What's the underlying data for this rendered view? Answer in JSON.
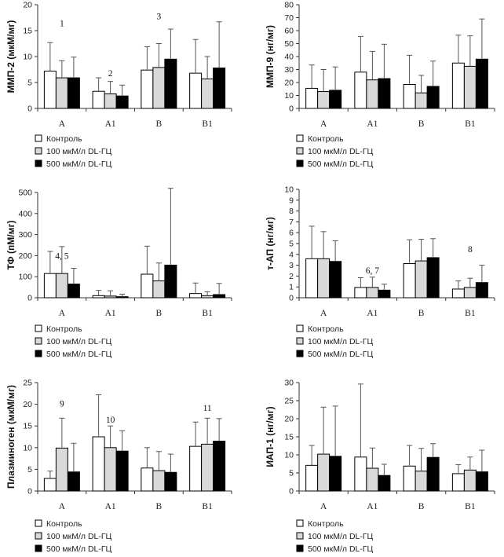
{
  "legend": {
    "entries": [
      "Контроль",
      "100 мкМ/л DL-ГЦ",
      "500 мкМ/л DL-ГЦ"
    ],
    "colors": [
      "#ffffff",
      "#d9d9d9",
      "#000000"
    ]
  },
  "chart_data": [
    {
      "type": "bar",
      "ylabel": "ММП-2 (мкМ/мг)",
      "ylim": [
        0,
        20
      ],
      "yticks": [
        0,
        5,
        10,
        15,
        20
      ],
      "categories": [
        "A",
        "A1",
        "B",
        "B1"
      ],
      "series": [
        {
          "name": "Контроль",
          "values": [
            7.2,
            3.3,
            7.4,
            6.8
          ],
          "errors": [
            5.5,
            2.6,
            4.5,
            6.5
          ]
        },
        {
          "name": "100 мкМ/л DL-ГЦ",
          "values": [
            5.9,
            2.8,
            7.9,
            5.7
          ],
          "errors": [
            3.3,
            2.4,
            4.6,
            4.3
          ]
        },
        {
          "name": "500 мкМ/л DL-ГЦ",
          "values": [
            5.9,
            2.4,
            9.5,
            7.8
          ],
          "errors": [
            4.0,
            2.1,
            5.8,
            8.9
          ]
        }
      ],
      "annotations": [
        {
          "text": "1",
          "category": 0,
          "y": 15.8
        },
        {
          "text": "2",
          "category": 1,
          "y": 6.2
        },
        {
          "text": "3",
          "category": 2,
          "y": 17.2
        }
      ]
    },
    {
      "type": "bar",
      "ylabel": "ММП-9 (нг/мг)",
      "ylim": [
        0,
        80
      ],
      "yticks": [
        0,
        10,
        20,
        30,
        40,
        50,
        60,
        70,
        80
      ],
      "categories": [
        "A",
        "A1",
        "B",
        "B1"
      ],
      "series": [
        {
          "name": "Контроль",
          "values": [
            15.5,
            28,
            18.5,
            35
          ],
          "errors": [
            18,
            27.5,
            22.5,
            21.5
          ]
        },
        {
          "name": "100 мкМ/л DL-ГЦ",
          "values": [
            13,
            22,
            12,
            32.5
          ],
          "errors": [
            17,
            22,
            13.5,
            23.5
          ]
        },
        {
          "name": "500 мкМ/л DL-ГЦ",
          "values": [
            14,
            23,
            17,
            38
          ],
          "errors": [
            18,
            26.5,
            19.5,
            31
          ]
        }
      ],
      "annotations": []
    },
    {
      "type": "bar",
      "ylabel": "ТФ (пМ/мг)",
      "ylim": [
        0,
        500
      ],
      "yticks": [
        0,
        100,
        200,
        300,
        400,
        500
      ],
      "categories": [
        "A",
        "A1",
        "B",
        "B1"
      ],
      "series": [
        {
          "name": "Контроль",
          "values": [
            115,
            10,
            112,
            20
          ],
          "errors": [
            105,
            25,
            133,
            50
          ]
        },
        {
          "name": "100 мкМ/л DL-ГЦ",
          "values": [
            115,
            8,
            80,
            10
          ],
          "errors": [
            128,
            25,
            85,
            18
          ]
        },
        {
          "name": "500 мкМ/л DL-ГЦ",
          "values": [
            65,
            5,
            155,
            15
          ],
          "errors": [
            75,
            12,
            365,
            53
          ]
        }
      ],
      "annotations": [
        {
          "text": "4, 5",
          "category": 0,
          "y": 185
        }
      ]
    },
    {
      "type": "bar",
      "ylabel": "т-АП (нг/мг)",
      "ylim": [
        0,
        10
      ],
      "yticks": [
        0,
        1,
        2,
        3,
        4,
        5,
        6,
        7,
        8,
        9,
        10
      ],
      "categories": [
        "A",
        "A1",
        "B",
        "B1"
      ],
      "series": [
        {
          "name": "Контроль",
          "values": [
            3.6,
            0.95,
            3.15,
            0.8
          ],
          "errors": [
            3.0,
            0.9,
            2.2,
            0.75
          ]
        },
        {
          "name": "100 мкМ/л DL-ГЦ",
          "values": [
            3.6,
            0.95,
            3.4,
            0.95
          ],
          "errors": [
            2.5,
            0.95,
            2.0,
            0.85
          ]
        },
        {
          "name": "500 мкМ/л DL-ГЦ",
          "values": [
            3.35,
            0.7,
            3.7,
            1.4
          ],
          "errors": [
            1.9,
            0.55,
            1.75,
            1.6
          ]
        }
      ],
      "annotations": [
        {
          "text": "6, 7",
          "category": 1,
          "y": 2.25
        },
        {
          "text": "8",
          "category": 3,
          "y": 4.2
        }
      ]
    },
    {
      "type": "bar",
      "ylabel": "Плазминоген (мкМ/мг)",
      "ylim": [
        0,
        25
      ],
      "yticks": [
        0,
        5,
        10,
        15,
        20,
        25
      ],
      "categories": [
        "A",
        "A1",
        "B",
        "B1"
      ],
      "series": [
        {
          "name": "Контроль",
          "values": [
            2.9,
            12.5,
            5.3,
            10.3
          ],
          "errors": [
            1.7,
            9.7,
            4.7,
            5.6
          ]
        },
        {
          "name": "100 мкМ/л DL-ГЦ",
          "values": [
            9.9,
            10.0,
            4.7,
            10.8
          ],
          "errors": [
            6.9,
            5.0,
            4.4,
            6.0
          ]
        },
        {
          "name": "500 мкМ/л DL-ГЦ",
          "values": [
            4.4,
            9.2,
            4.3,
            11.5
          ],
          "errors": [
            6.6,
            4.7,
            4.2,
            5.2
          ]
        }
      ],
      "annotations": [
        {
          "text": "9",
          "category": 0,
          "y": 19.5
        },
        {
          "text": "10",
          "category": 1,
          "y": 15.8
        },
        {
          "text": "11",
          "category": 3,
          "y": 18.5
        }
      ]
    },
    {
      "type": "bar",
      "ylabel": "ИАП-1 (нг/мг)",
      "ylim": [
        0,
        30
      ],
      "yticks": [
        0,
        5,
        10,
        15,
        20,
        25,
        30
      ],
      "categories": [
        "A",
        "A1",
        "B",
        "B1"
      ],
      "series": [
        {
          "name": "Контроль",
          "values": [
            7.1,
            9.4,
            6.9,
            4.8
          ],
          "errors": [
            5.5,
            20.2,
            5.7,
            2.5
          ]
        },
        {
          "name": "100 мкМ/л DL-ГЦ",
          "values": [
            10.2,
            6.3,
            5.5,
            5.8
          ],
          "errors": [
            13.0,
            5.6,
            6.3,
            3.6
          ]
        },
        {
          "name": "500 мкМ/л DL-ГЦ",
          "values": [
            9.6,
            4.3,
            9.3,
            5.3
          ],
          "errors": [
            13.9,
            3.1,
            3.8,
            6.0
          ]
        }
      ],
      "annotations": []
    }
  ]
}
